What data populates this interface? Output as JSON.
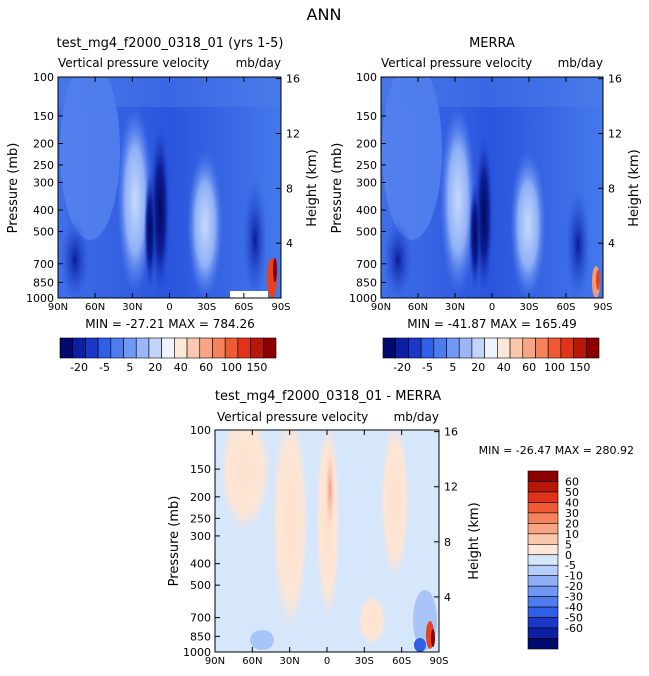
{
  "page_title": "ANN",
  "chart_data": [
    {
      "type": "heatmap",
      "panel": "model",
      "title": "test_mg4_f2000_0318_01 (yrs 1-5)",
      "subtitle_left": "Vertical pressure velocity",
      "subtitle_right": "mb/day",
      "ylabel": "Pressure (mb)",
      "y2label": "Height (km)",
      "x_ticks": [
        "90N",
        "60N",
        "30N",
        "0",
        "30S",
        "60S",
        "90S"
      ],
      "y_ticks": [
        "100",
        "150",
        "200",
        "250",
        "300",
        "400",
        "500",
        "700",
        "850",
        "1000"
      ],
      "y2_ticks": [
        "16",
        "12",
        "8",
        "4"
      ],
      "stats": "MIN = -27.21   MAX = 784.26",
      "colorbar_labels": [
        "-20",
        "-5",
        "5",
        "20",
        "40",
        "60",
        "100",
        "150"
      ]
    },
    {
      "type": "heatmap",
      "panel": "obs",
      "title": "MERRA",
      "subtitle_left": "Vertical pressure velocity",
      "subtitle_right": "mb/day",
      "ylabel": "Pressure (mb)",
      "y2label": "Height (km)",
      "x_ticks": [
        "90N",
        "60N",
        "30N",
        "0",
        "30S",
        "60S",
        "90S"
      ],
      "y_ticks": [
        "100",
        "150",
        "200",
        "250",
        "300",
        "400",
        "500",
        "700",
        "850",
        "1000"
      ],
      "y2_ticks": [
        "16",
        "12",
        "8",
        "4"
      ],
      "stats": "MIN = -41.87   MAX = 165.49",
      "colorbar_labels": [
        "-20",
        "-5",
        "5",
        "20",
        "40",
        "60",
        "100",
        "150"
      ]
    },
    {
      "type": "heatmap",
      "panel": "difference",
      "title": "test_mg4_f2000_0318_01 - MERRA",
      "subtitle_left": "Vertical pressure velocity",
      "subtitle_right": "mb/day",
      "ylabel": "Pressure (mb)",
      "y2label": "Height (km)",
      "x_ticks": [
        "90N",
        "60N",
        "30N",
        "0",
        "30S",
        "60S",
        "90S"
      ],
      "y_ticks": [
        "100",
        "150",
        "200",
        "250",
        "300",
        "400",
        "500",
        "700",
        "850",
        "1000"
      ],
      "y2_ticks": [
        "16",
        "12",
        "8",
        "4"
      ],
      "stats": "MIN = -26.47   MAX = 280.92",
      "colorbar_labels": [
        "60",
        "50",
        "40",
        "30",
        "20",
        "10",
        "5",
        "0",
        "-5",
        "-10",
        "-20",
        "-30",
        "-40",
        "-50",
        "-60"
      ]
    }
  ],
  "colors": {
    "deep_blue": "#000a6e",
    "blue": "#2f5fe6",
    "mid_blue": "#5d8bf0",
    "light_blue": "#a8c4f8",
    "pale_blue": "#d6e6fb",
    "pale_orange": "#fde4d2",
    "orange": "#f59a73",
    "red": "#e8411e",
    "dark_red": "#8c0000"
  }
}
